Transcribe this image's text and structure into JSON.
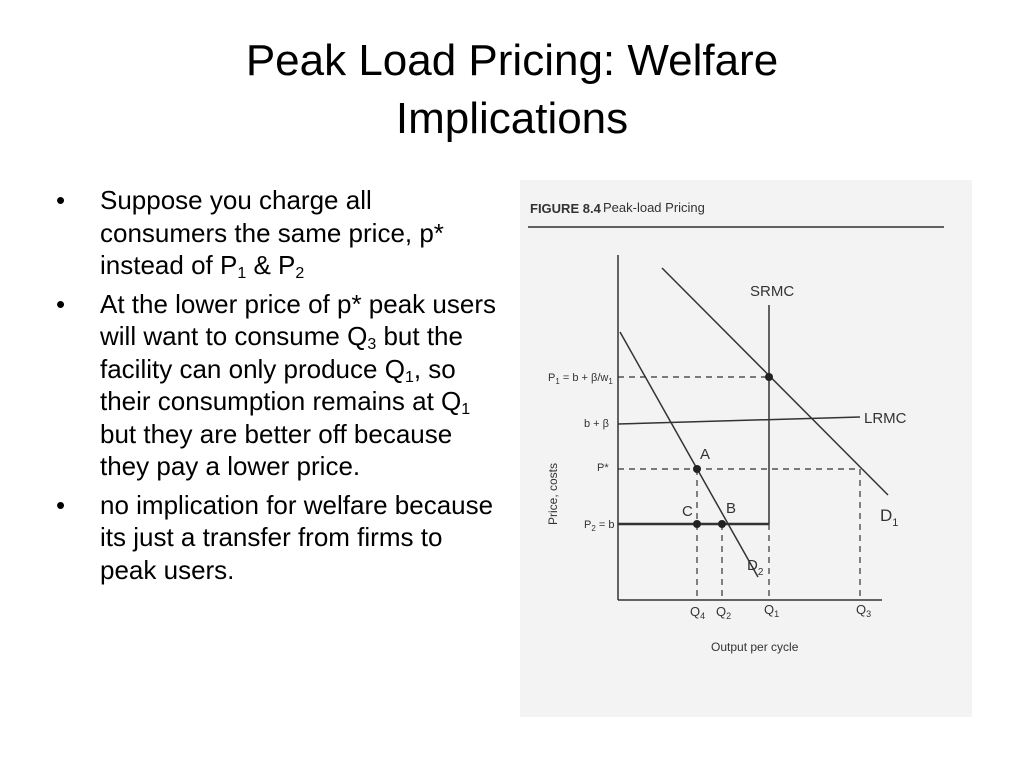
{
  "slide": {
    "title_line1": "Peak Load Pricing: Welfare",
    "title_line2": "Implications",
    "bullets": [
      {
        "parts": [
          "Suppose you charge all consumers the same price, p* instead of P",
          "1",
          " & P",
          "2",
          ""
        ]
      },
      {
        "parts": [
          "At the lower price of p* peak users will want to consume Q",
          "3",
          " but  the facility can only produce Q",
          "1",
          ", so their consumption remains at Q",
          "1",
          " but they are better off because they pay a lower price."
        ]
      },
      {
        "parts": [
          "no implication for welfare because its just a transfer from firms to peak users."
        ]
      }
    ]
  },
  "figure": {
    "caption_number": "FIGURE 8.4",
    "caption_title": "Peak-load Pricing",
    "y_axis_label": "Price, costs",
    "x_axis_label": "Output per cycle",
    "price_labels": {
      "p1": "P",
      "p1_sub": "1",
      "p1_rest": " = b + β/w",
      "p1_rest_sub": "1",
      "b_beta": "b + β",
      "p_star": "P*",
      "p2": "P",
      "p2_sub": "2",
      "p2_rest": " = b"
    },
    "quantity_labels": {
      "q4": "Q",
      "q4_sub": "4",
      "q2": "Q",
      "q2_sub": "2",
      "q1": "Q",
      "q1_sub": "1",
      "q3": "Q",
      "q3_sub": "3"
    },
    "curve_labels": {
      "srmc": "SRMC",
      "lrmc": "LRMC",
      "d1": "D",
      "d1_sub": "1",
      "d2": "D",
      "d2_sub": "2"
    },
    "point_labels": {
      "a": "A",
      "b": "B",
      "c": "C"
    }
  }
}
